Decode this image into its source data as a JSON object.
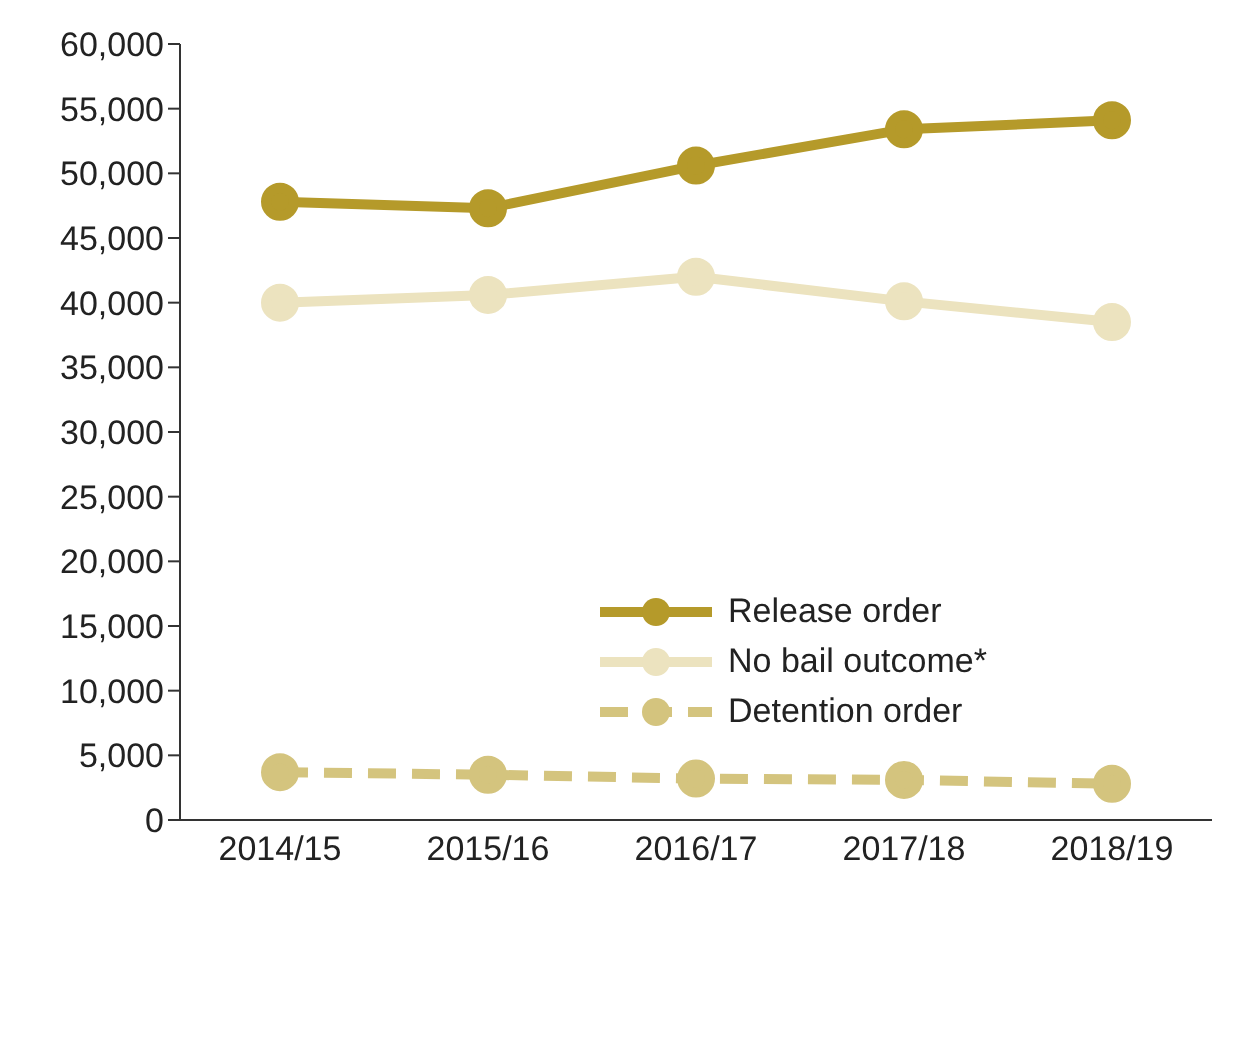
{
  "chart_data": {
    "type": "line",
    "categories": [
      "2014/15",
      "2015/16",
      "2016/17",
      "2017/18",
      "2018/19"
    ],
    "series": [
      {
        "name": "Release order",
        "color": "#b59a2a",
        "values": [
          47800,
          47300,
          50600,
          53400,
          54100
        ]
      },
      {
        "name": "No bail outcome*",
        "color": "#ece3bf",
        "values": [
          40000,
          40600,
          42000,
          40100,
          38500
        ]
      },
      {
        "name": "Detention order",
        "color": "#d4c47e",
        "values": [
          3700,
          3500,
          3200,
          3100,
          2800
        ],
        "line_style": "dashed"
      }
    ],
    "ylim": [
      0,
      60000
    ],
    "yticks": [
      0,
      {
        "value": 5000,
        "label": "5,000"
      },
      {
        "value": 10000,
        "label": "10,000"
      },
      {
        "value": 15000,
        "label": "15,000"
      },
      {
        "value": 20000,
        "label": "20,000"
      },
      {
        "value": 25000,
        "label": "25,000"
      },
      {
        "value": 30000,
        "label": "30,000"
      },
      {
        "value": 35000,
        "label": "35,000"
      },
      {
        "value": 40000,
        "label": "40,000"
      },
      {
        "value": 45000,
        "label": "45,000"
      },
      {
        "value": 50000,
        "label": "50,000"
      },
      {
        "value": 55000,
        "label": "55,000"
      },
      {
        "value": 60000,
        "label": "60,000"
      }
    ],
    "grid": false,
    "legend": "center right",
    "marker": "circle",
    "line_style": "solid"
  }
}
